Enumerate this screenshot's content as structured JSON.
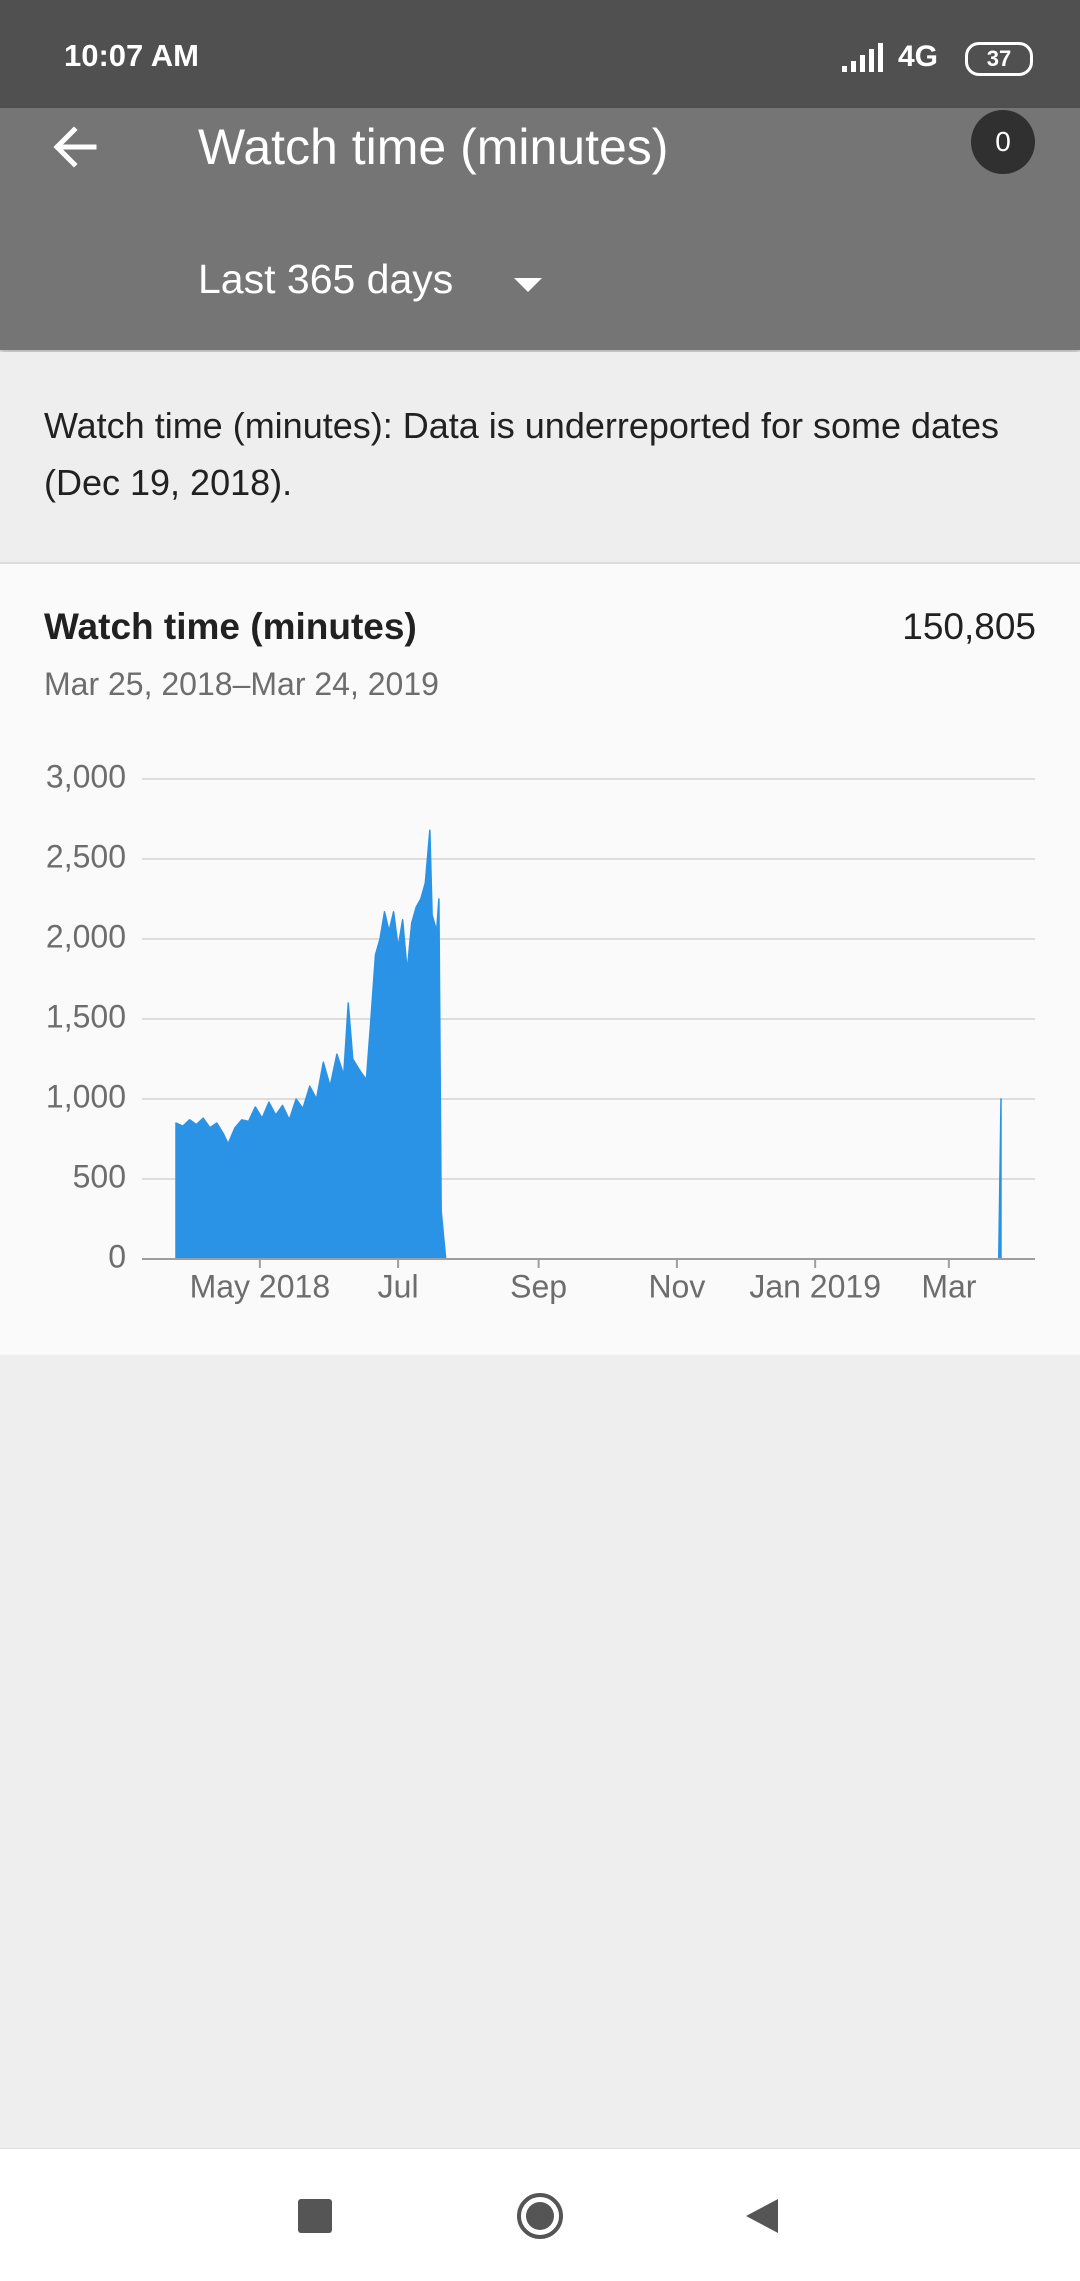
{
  "status_bar": {
    "time": "10:07 AM",
    "network": "4G",
    "battery": "37"
  },
  "header": {
    "title": "Watch time (minutes)",
    "badge": "0",
    "period": "Last 365 days"
  },
  "notice": "Watch time (minutes): Data is underreported for some dates (Dec 19, 2018).",
  "card": {
    "title": "Watch time (minutes)",
    "total": "150,805",
    "range": "Mar 25, 2018–Mar 24, 2019"
  },
  "chart_data": {
    "type": "area",
    "color": "#2b93e5",
    "grid": true,
    "x": [
      "2018-03-25",
      "2018-03-28",
      "2018-03-31",
      "2018-04-03",
      "2018-04-06",
      "2018-04-09",
      "2018-04-12",
      "2018-04-15",
      "2018-04-17",
      "2018-04-20",
      "2018-04-23",
      "2018-04-26",
      "2018-04-29",
      "2018-05-02",
      "2018-05-05",
      "2018-05-08",
      "2018-05-11",
      "2018-05-14",
      "2018-05-17",
      "2018-05-20",
      "2018-05-23",
      "2018-05-26",
      "2018-05-29",
      "2018-06-01",
      "2018-06-04",
      "2018-06-07",
      "2018-06-09",
      "2018-06-11",
      "2018-06-14",
      "2018-06-17",
      "2018-06-19",
      "2018-06-21",
      "2018-06-23",
      "2018-06-25",
      "2018-06-27",
      "2018-06-29",
      "2018-07-01",
      "2018-07-03",
      "2018-07-05",
      "2018-07-07",
      "2018-07-09",
      "2018-07-11",
      "2018-07-13",
      "2018-07-15",
      "2018-07-16",
      "2018-07-18",
      "2018-07-19",
      "2018-07-20",
      "2018-07-22",
      "2019-03-23",
      "2019-03-24"
    ],
    "values": [
      850,
      830,
      870,
      840,
      880,
      820,
      850,
      780,
      720,
      820,
      870,
      860,
      950,
      880,
      980,
      900,
      960,
      870,
      1000,
      940,
      1080,
      1000,
      1230,
      1080,
      1280,
      1150,
      1600,
      1250,
      1180,
      1120,
      1500,
      1900,
      2000,
      2170,
      2050,
      2170,
      1950,
      2120,
      1800,
      2100,
      2200,
      2250,
      2350,
      2680,
      2150,
      2050,
      2250,
      300,
      0,
      0,
      1000
    ],
    "xlim": [
      "2018-03-10",
      "2019-04-08"
    ],
    "xticks": [
      {
        "value": "2018-05-01",
        "label": "May 2018"
      },
      {
        "value": "2018-07-01",
        "label": "Jul"
      },
      {
        "value": "2018-09-01",
        "label": "Sep"
      },
      {
        "value": "2018-11-01",
        "label": "Nov"
      },
      {
        "value": "2019-01-01",
        "label": "Jan 2019"
      },
      {
        "value": "2019-03-01",
        "label": "Mar"
      }
    ],
    "ylim": [
      0,
      3000
    ],
    "yticks": [
      0,
      500,
      {
        "value": 1000,
        "label": "1,000"
      },
      {
        "value": 1500,
        "label": "1,500"
      },
      {
        "value": 2000,
        "label": "2,000"
      },
      {
        "value": 2500,
        "label": "2,500"
      },
      {
        "value": 3000,
        "label": "3,000"
      }
    ]
  }
}
